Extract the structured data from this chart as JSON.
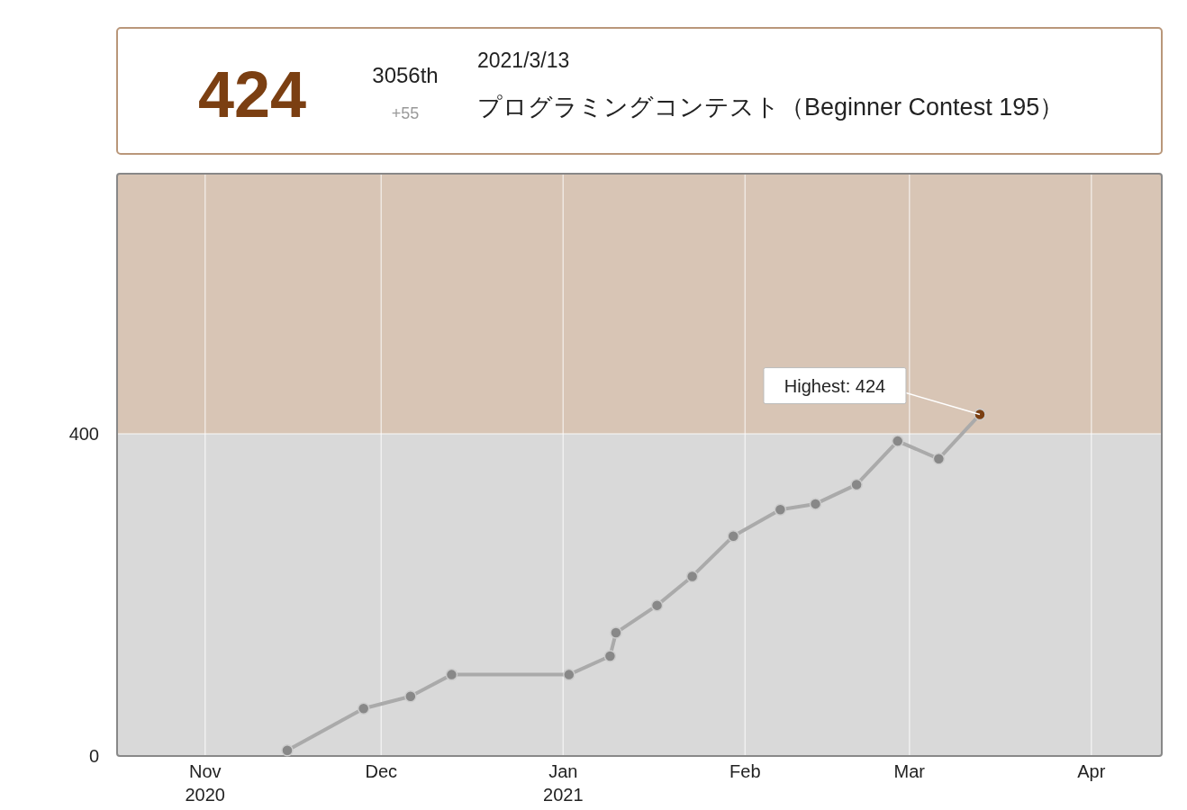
{
  "chart_data": {
    "type": "line",
    "x": [
      "2020-11-15",
      "2020-11-28",
      "2020-12-06",
      "2020-12-13",
      "2021-01-02",
      "2021-01-09",
      "2021-01-10",
      "2021-01-17",
      "2021-01-23",
      "2021-01-30",
      "2021-02-07",
      "2021-02-13",
      "2021-02-20",
      "2021-02-27",
      "2021-03-06",
      "2021-03-13"
    ],
    "series": [
      {
        "color": "#aaaaaa",
        "colors": [
          "#888888",
          "#888888",
          "#888888",
          "#888888",
          "#888888",
          "#888888",
          "#888888",
          "#888888",
          "#888888",
          "#888888",
          "#888888",
          "#888888",
          "#888888",
          "#888888",
          "#888888",
          "#7b3f12"
        ],
        "values": [
          7,
          59,
          74,
          101,
          101,
          124,
          153,
          187,
          223,
          273,
          306,
          313,
          337,
          391,
          369,
          424
        ]
      }
    ],
    "xlim": [
      "2020-10-17",
      "2021-04-13"
    ],
    "xticks": [
      {
        "value": "2020-11-01",
        "label": "Nov\n2020"
      },
      {
        "value": "2020-12-01",
        "label": "Dec"
      },
      {
        "value": "2021-01-01",
        "label": "Jan\n2021"
      },
      {
        "value": "2021-02-01",
        "label": "Feb"
      },
      {
        "value": "2021-03-01",
        "label": "Mar"
      },
      {
        "value": "2021-04-01",
        "label": "Apr"
      }
    ],
    "ylim": [
      0,
      723
    ],
    "yticks": [
      0,
      400
    ],
    "bands": [
      {
        "axis": "y",
        "from": 0,
        "to": 400,
        "color": "#d9d9d9"
      },
      {
        "axis": "y",
        "from": 400,
        "to": 723,
        "color": "#d8c5b5"
      }
    ],
    "grid": true,
    "marker": "circle",
    "annotations": [
      "424",
      "3056th",
      "+55",
      "2021/3/13",
      "プログラミングコンテスト（Beginner Contest 195）",
      {
        "text": "Highest: 424",
        "x": "2021-03-13",
        "y": 424
      }
    ]
  }
}
